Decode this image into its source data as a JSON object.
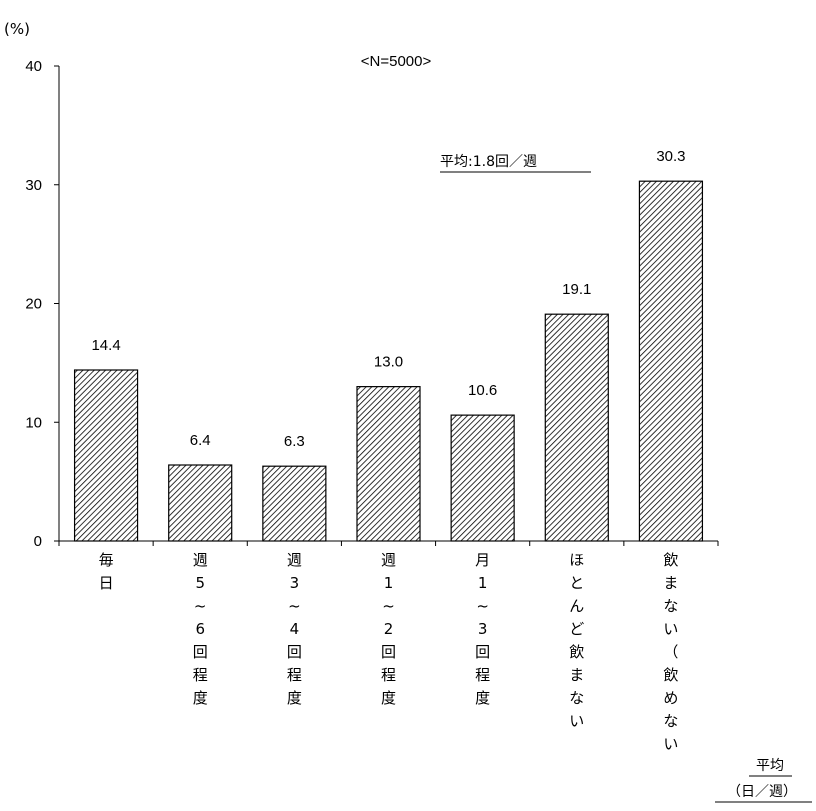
{
  "chart_data": {
    "type": "bar",
    "title": "<N=5000>",
    "ylabel": "(%)",
    "ylim": [
      0,
      40
    ],
    "yticks": [
      0,
      10,
      20,
      30,
      40
    ],
    "categories": [
      "毎日",
      "週5~6回程度",
      "週3~4回程度",
      "週1~2回程度",
      "月1~3回程度",
      "ほとんど飲まない",
      "飲まない（飲めない）"
    ],
    "values": [
      14.4,
      6.4,
      6.3,
      13.0,
      10.6,
      19.1,
      30.3
    ],
    "value_labels": [
      "14.4",
      "6.4",
      "6.3",
      "13.0",
      "10.6",
      "19.1",
      "30.3"
    ],
    "category_display": [
      [
        "毎",
        "日"
      ],
      [
        "週",
        "5",
        "~",
        "6",
        "回",
        "程",
        "度"
      ],
      [
        "週",
        "3",
        "~",
        "4",
        "回",
        "程",
        "度"
      ],
      [
        "週",
        "1",
        "~",
        "2",
        "回",
        "程",
        "度"
      ],
      [
        "月",
        "1",
        "~",
        "3",
        "回",
        "程",
        "度"
      ],
      [
        "ほ",
        "と",
        "ん",
        "ど",
        "飲",
        "ま",
        "な",
        "い"
      ],
      [
        "飲",
        "ま",
        "な",
        "い",
        "（",
        "飲",
        "め",
        "な",
        "い"
      ]
    ],
    "bar_pattern": "diagonal-hatch",
    "grid": false,
    "average_note": "平均:1.8回／週",
    "average_header": "平均",
    "average_unit": "（日／週）"
  }
}
